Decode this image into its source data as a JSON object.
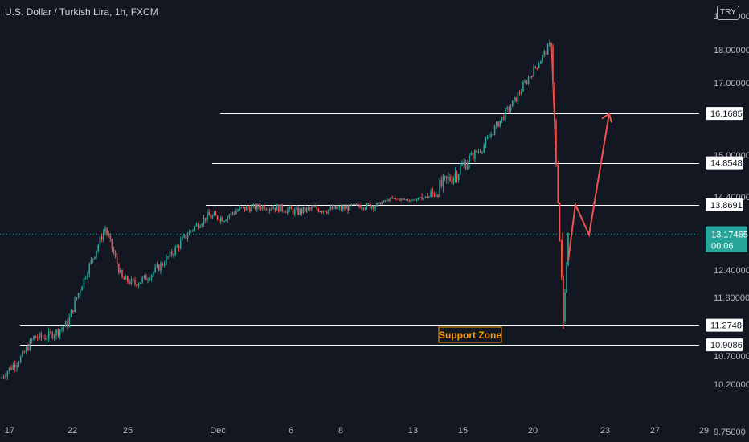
{
  "header": {
    "title": "U.S. Dollar / Turkish Lira, 1h, FXCM",
    "currency_button": "TRY"
  },
  "colors": {
    "background": "#131722",
    "up": "#26a69a",
    "down": "#ef5350",
    "level_line": "#ffffff",
    "axis_text": "#b2b5be",
    "current_price": "#26a69a",
    "annotation": "#ef5350",
    "support_label": "#ff9800"
  },
  "chart_data": {
    "type": "candlestick",
    "symbol": "USDTRY",
    "interval": "1h",
    "y_axis_ticks": [
      "19.00000",
      "18.00000",
      "17.00000",
      "15.00000",
      "14.40000",
      "12.40000",
      "11.80000",
      "10.70000",
      "10.20000",
      "9.75000"
    ],
    "x_axis_ticks": [
      "17",
      "22",
      "25",
      "Dec",
      "6",
      "8",
      "13",
      "15",
      "20",
      "23",
      "27",
      "29"
    ],
    "levels": [
      {
        "name": "resistance-3",
        "value": "16.16850"
      },
      {
        "name": "resistance-2",
        "value": "14.85489"
      },
      {
        "name": "resistance-1",
        "value": "13.86910"
      },
      {
        "name": "support-upper",
        "value": "11.27481"
      },
      {
        "name": "support-lower",
        "value": "10.90863"
      }
    ],
    "current_price": "13.17465",
    "countdown": "00:06",
    "support_zone_label": "Support Zone",
    "price_path": [
      {
        "x": "Nov 16",
        "y": 10.3
      },
      {
        "x": "Nov 17",
        "y": 10.5
      },
      {
        "x": "Nov 18",
        "y": 10.7
      },
      {
        "x": "Nov 19",
        "y": 11.05
      },
      {
        "x": "Nov 20",
        "y": 11.05
      },
      {
        "x": "Nov 21",
        "y": 11.15
      },
      {
        "x": "Nov 22",
        "y": 11.3
      },
      {
        "x": "Nov 23",
        "y": 12.4
      },
      {
        "x": "Nov 24",
        "y": 13.3
      },
      {
        "x": "Nov 25",
        "y": 12.2
      },
      {
        "x": "Nov 26",
        "y": 12.1
      },
      {
        "x": "Nov 27",
        "y": 12.25
      },
      {
        "x": "Nov 28",
        "y": 12.5
      },
      {
        "x": "Nov 29",
        "y": 12.8
      },
      {
        "x": "Nov 30",
        "y": 13.3
      },
      {
        "x": "Dec 1",
        "y": 13.6
      },
      {
        "x": "Dec 2",
        "y": 13.55
      },
      {
        "x": "Dec 3",
        "y": 13.75
      },
      {
        "x": "Dec 4",
        "y": 13.82
      },
      {
        "x": "Dec 5",
        "y": 13.85
      },
      {
        "x": "Dec 6",
        "y": 13.8
      },
      {
        "x": "Dec 7",
        "y": 13.7
      },
      {
        "x": "Dec 8",
        "y": 13.78
      },
      {
        "x": "Dec 9",
        "y": 13.76
      },
      {
        "x": "Dec 10",
        "y": 13.8
      },
      {
        "x": "Dec 11",
        "y": 13.88
      },
      {
        "x": "Dec 12",
        "y": 13.87
      },
      {
        "x": "Dec 13",
        "y": 14.25
      },
      {
        "x": "Dec 14",
        "y": 14.2
      },
      {
        "x": "Dec 15",
        "y": 14.5
      },
      {
        "x": "Dec 16",
        "y": 14.8
      },
      {
        "x": "Dec 17",
        "y": 15.2
      },
      {
        "x": "Dec 18",
        "y": 15.9
      },
      {
        "x": "Dec 19",
        "y": 16.5
      },
      {
        "x": "Dec 20",
        "y": 18.2
      },
      {
        "x": "Dec 20b",
        "y": 14.8
      },
      {
        "x": "Dec 21",
        "y": 11.3
      },
      {
        "x": "Dec 21b",
        "y": 13.2
      }
    ],
    "projection": [
      {
        "x": "Dec 21",
        "y": 12.6
      },
      {
        "x": "Dec 22",
        "y": 13.9
      },
      {
        "x": "Dec 22b",
        "y": 13.15
      },
      {
        "x": "Dec 23",
        "y": 16.16
      }
    ],
    "grid": false,
    "legend": "none"
  }
}
